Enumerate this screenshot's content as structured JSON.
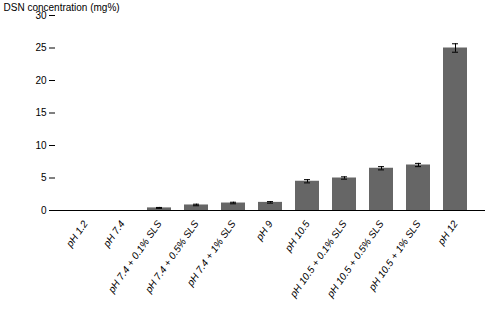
{
  "chart_data": {
    "type": "bar",
    "categories": [
      "pH 1.2",
      "pH 7.4",
      "pH 7.4 + 0.1% SLS",
      "pH 7.4 + 0.5% SLS",
      "pH 7.4 + 1% SLS",
      "pH 9",
      "pH 10.5",
      "pH 10.5 + 0.1% SLS",
      "pH 10.5 + 0.5% SLS",
      "pH 10.5 + 1% SLS",
      "pH 12"
    ],
    "values": [
      0.0,
      0.0,
      0.4,
      0.85,
      1.15,
      1.25,
      4.5,
      5.0,
      6.5,
      7.0,
      25.0
    ],
    "errors": [
      0.0,
      0.0,
      0.07,
      0.12,
      0.12,
      0.12,
      0.25,
      0.18,
      0.25,
      0.25,
      0.65
    ],
    "color": "#666666",
    "ylabel": "DSN concentration (mg%)",
    "ylim": [
      0,
      30
    ],
    "yticks": [
      0,
      5,
      10,
      15,
      20,
      25,
      30
    ],
    "grid": false
  }
}
